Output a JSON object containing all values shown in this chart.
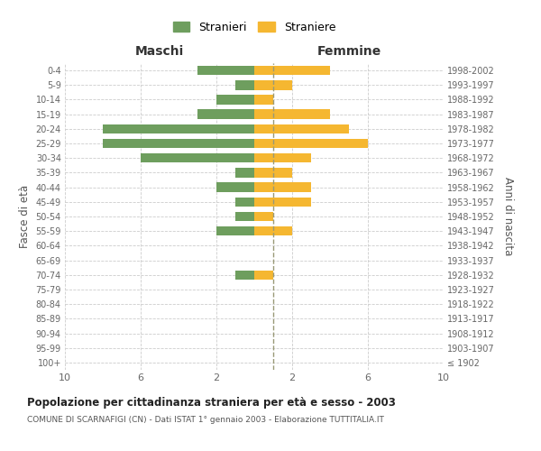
{
  "age_groups": [
    "100+",
    "95-99",
    "90-94",
    "85-89",
    "80-84",
    "75-79",
    "70-74",
    "65-69",
    "60-64",
    "55-59",
    "50-54",
    "45-49",
    "40-44",
    "35-39",
    "30-34",
    "25-29",
    "20-24",
    "15-19",
    "10-14",
    "5-9",
    "0-4"
  ],
  "birth_years": [
    "≤ 1902",
    "1903-1907",
    "1908-1912",
    "1913-1917",
    "1918-1922",
    "1923-1927",
    "1928-1932",
    "1933-1937",
    "1938-1942",
    "1943-1947",
    "1948-1952",
    "1953-1957",
    "1958-1962",
    "1963-1967",
    "1968-1972",
    "1973-1977",
    "1978-1982",
    "1983-1987",
    "1988-1992",
    "1993-1997",
    "1998-2002"
  ],
  "maschi": [
    0,
    0,
    0,
    0,
    0,
    0,
    1,
    0,
    0,
    2,
    1,
    1,
    2,
    1,
    6,
    8,
    8,
    3,
    2,
    1,
    3
  ],
  "femmine": [
    0,
    0,
    0,
    0,
    0,
    0,
    1,
    0,
    0,
    2,
    1,
    3,
    3,
    2,
    3,
    6,
    5,
    4,
    1,
    2,
    4
  ],
  "color_maschi": "#6e9e5e",
  "color_femmine": "#f5b731",
  "title": "Popolazione per cittadinanza straniera per età e sesso - 2003",
  "subtitle": "COMUNE DI SCARNAFIGI (CN) - Dati ISTAT 1° gennaio 2003 - Elaborazione TUTTITALIA.IT",
  "ylabel_left": "Fasce di età",
  "ylabel_right": "Anni di nascita",
  "xlabel_maschi": "Maschi",
  "xlabel_femmine": "Femmine",
  "legend_maschi": "Stranieri",
  "legend_femmine": "Straniere",
  "xlim": 10,
  "background_color": "#ffffff",
  "grid_color": "#cccccc",
  "dashed_line_x": 1
}
